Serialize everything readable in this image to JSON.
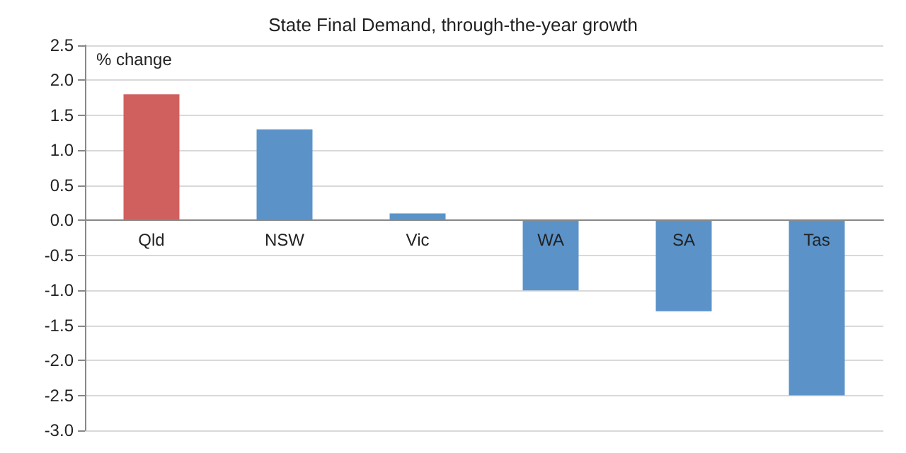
{
  "chart_data": {
    "type": "bar",
    "title": "State Final Demand, through-the-year growth",
    "ylabel": "% change",
    "categories": [
      "Qld",
      "NSW",
      "Vic",
      "WA",
      "SA",
      "Tas"
    ],
    "values": [
      1.8,
      1.3,
      0.1,
      -1.0,
      -1.3,
      -2.5
    ],
    "colors": [
      "#d0605e",
      "#5b93c9",
      "#5b93c9",
      "#5b93c9",
      "#5b93c9",
      "#5b93c9"
    ],
    "ylim": [
      -3,
      2.5
    ],
    "yticks": [
      {
        "value": -3,
        "label": "-3.0"
      },
      {
        "value": -2.5,
        "label": "-2.5"
      },
      {
        "value": -2,
        "label": "-2.0"
      },
      {
        "value": -1.5,
        "label": "-1.5"
      },
      {
        "value": -1,
        "label": "-1.0"
      },
      {
        "value": -0.5,
        "label": "-0.5"
      },
      {
        "value": 0,
        "label": "0.0"
      },
      {
        "value": 0.5,
        "label": "0.5"
      },
      {
        "value": 1,
        "label": "1.0"
      },
      {
        "value": 1.5,
        "label": "1.5"
      },
      {
        "value": 2,
        "label": "2.0"
      },
      {
        "value": 2.5,
        "label": "2.5"
      }
    ],
    "grid": "y"
  }
}
